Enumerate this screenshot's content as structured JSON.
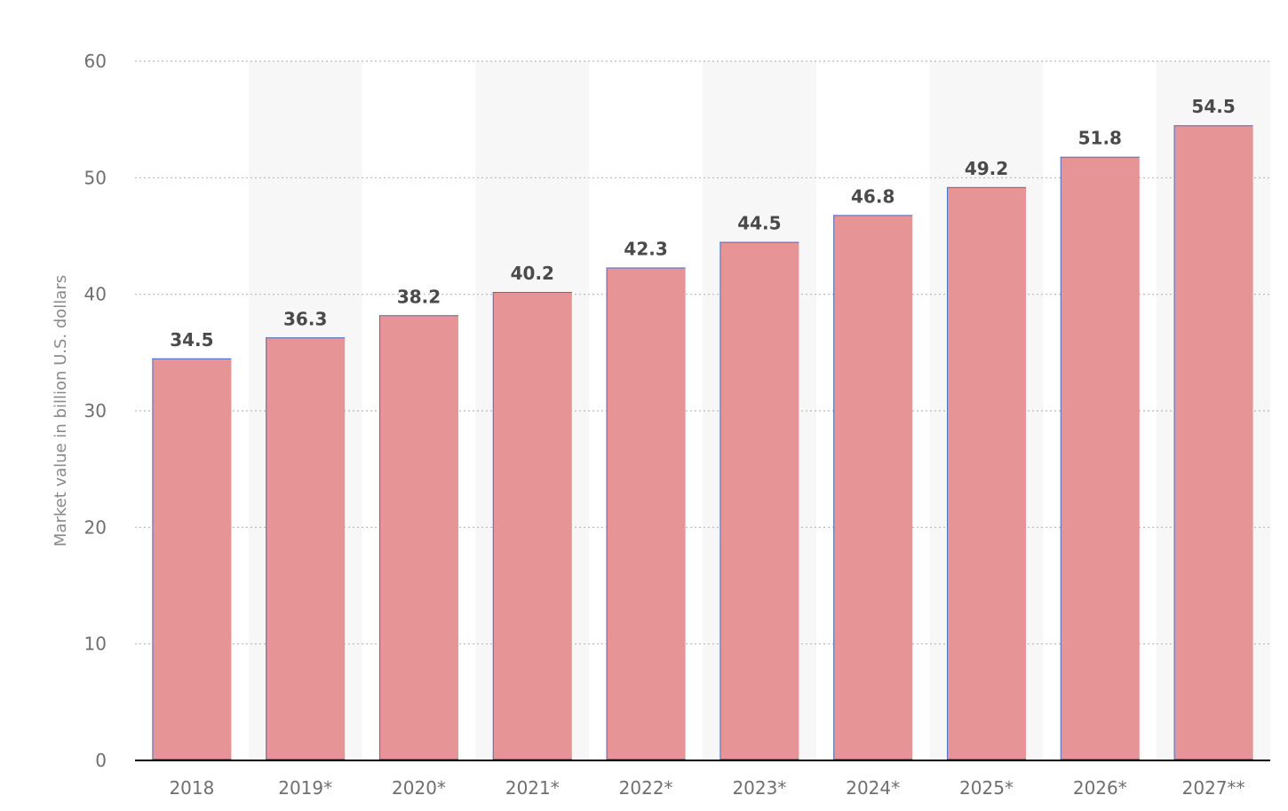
{
  "chart_data": {
    "type": "bar",
    "title": "",
    "xlabel": "",
    "ylabel": "Market value in billion U.S. dollars",
    "categories": [
      "2018",
      "2019*",
      "2020*",
      "2021*",
      "2022*",
      "2023*",
      "2024*",
      "2025*",
      "2026*",
      "2027**"
    ],
    "values": [
      34.5,
      36.3,
      38.2,
      40.2,
      42.3,
      44.5,
      46.8,
      49.2,
      51.8,
      54.5
    ],
    "value_labels": [
      "34.5",
      "36.3",
      "38.2",
      "40.2",
      "42.3",
      "44.5",
      "46.8",
      "49.2",
      "51.8",
      "54.5"
    ],
    "ylim": [
      0,
      60
    ],
    "yticks": [
      0,
      10,
      20,
      30,
      40,
      50,
      60
    ],
    "ytick_labels": [
      "0",
      "10",
      "20",
      "30",
      "40",
      "50",
      "60"
    ],
    "grid": true,
    "legend": "none",
    "colors": {
      "bar": "#e69496",
      "bar_edge": "#4a72c8",
      "band": "#f7f7f7",
      "grid": "#b8b8b8",
      "axis": "#000000"
    }
  }
}
